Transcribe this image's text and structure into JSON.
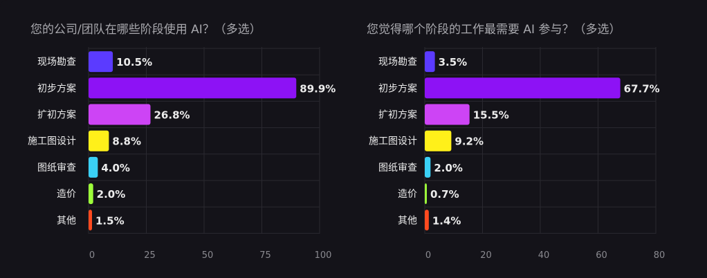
{
  "colors": [
    "#5b3bff",
    "#8d12f5",
    "#cd44f5",
    "#fff01a",
    "#3ad0f5",
    "#9dff3a",
    "#ff4a1f"
  ],
  "chart_data": [
    {
      "type": "bar",
      "orientation": "horizontal",
      "title": "您的公司/团队在哪些阶段使用 AI？（多选）",
      "categories": [
        "现场勘查",
        "初步方案",
        "扩初方案",
        "施工图设计",
        "图纸审查",
        "造价",
        "其他"
      ],
      "values": [
        10.5,
        89.9,
        26.8,
        8.8,
        4.0,
        2.0,
        1.5
      ],
      "value_labels": [
        "10.5%",
        "89.9%",
        "26.8%",
        "8.8%",
        "4.0%",
        "2.0%",
        "1.5%"
      ],
      "xlim": [
        0,
        100
      ],
      "xticks": [
        "0",
        "25",
        "50",
        "75",
        "100"
      ],
      "grid": true
    },
    {
      "type": "bar",
      "orientation": "horizontal",
      "title": "您觉得哪个阶段的工作最需要 AI 参与？（多选）",
      "categories": [
        "现场勘查",
        "初步方案",
        "扩初方案",
        "施工图设计",
        "图纸审查",
        "造价",
        "其他"
      ],
      "values": [
        3.5,
        67.7,
        15.5,
        9.2,
        2.0,
        0.7,
        1.4
      ],
      "value_labels": [
        "3.5%",
        "67.7%",
        "15.5%",
        "9.2%",
        "2.0%",
        "0.7%",
        "1.4%"
      ],
      "xlim": [
        0,
        80
      ],
      "xticks": [
        "0",
        "20",
        "40",
        "60",
        "80"
      ],
      "grid": true
    }
  ]
}
